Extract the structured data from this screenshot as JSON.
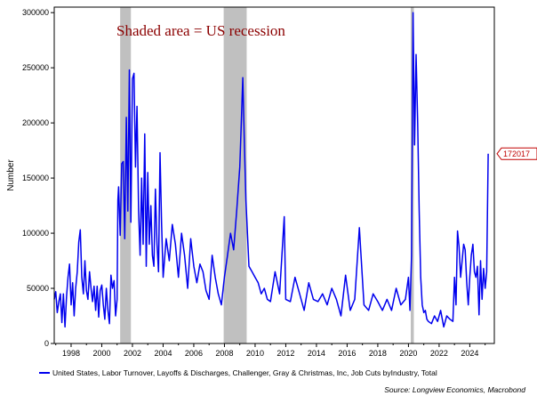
{
  "chart_data": {
    "type": "line",
    "title": "",
    "xlabel": "",
    "ylabel": "Number",
    "annotation": "Shaded area = US recession",
    "last_value_label": "172017",
    "last_value": 172017,
    "xlim": [
      1996.9,
      2025.6
    ],
    "ylim": [
      0,
      305000
    ],
    "x_ticks": [
      1998,
      2000,
      2002,
      2004,
      2006,
      2008,
      2010,
      2012,
      2014,
      2016,
      2018,
      2020,
      2022,
      2024
    ],
    "x_tick_labels": [
      "1998",
      "2000",
      "2002",
      "2004",
      "2006",
      "2008",
      "2010",
      "2012",
      "2014",
      "2016",
      "2018",
      "2020",
      "2022",
      "2024"
    ],
    "y_ticks": [
      0,
      50000,
      100000,
      150000,
      200000,
      250000,
      300000
    ],
    "y_tick_labels": [
      "0",
      "50000",
      "100000",
      "150000",
      "200000",
      "250000",
      "300000"
    ],
    "recessions": [
      {
        "start": 2001.2,
        "end": 2001.9
      },
      {
        "start": 2007.95,
        "end": 2009.45
      },
      {
        "start": 2020.15,
        "end": 2020.35
      }
    ],
    "series": [
      {
        "name": "United States, Labor Turnover, Layoffs & Discharges, Challenger, Gray & Christmas, Inc, Job Cuts byIndustry, Total",
        "color": "#0000ee",
        "x": [
          1996.9,
          1997.0,
          1997.1,
          1997.2,
          1997.3,
          1997.4,
          1997.5,
          1997.6,
          1997.7,
          1997.8,
          1997.9,
          1998.0,
          1998.1,
          1998.2,
          1998.3,
          1998.4,
          1998.5,
          1998.6,
          1998.7,
          1998.8,
          1998.9,
          1999.0,
          1999.1,
          1999.2,
          1999.3,
          1999.4,
          1999.5,
          1999.6,
          1999.7,
          1999.8,
          1999.9,
          2000.0,
          2000.1,
          2000.2,
          2000.3,
          2000.4,
          2000.5,
          2000.6,
          2000.7,
          2000.8,
          2000.9,
          2001.0,
          2001.05,
          2001.1,
          2001.2,
          2001.3,
          2001.4,
          2001.5,
          2001.6,
          2001.7,
          2001.8,
          2001.9,
          2002.0,
          2002.1,
          2002.2,
          2002.3,
          2002.4,
          2002.5,
          2002.6,
          2002.7,
          2002.8,
          2002.9,
          2003.0,
          2003.1,
          2003.2,
          2003.3,
          2003.4,
          2003.5,
          2003.6,
          2003.7,
          2003.8,
          2003.9,
          2004.0,
          2004.2,
          2004.4,
          2004.6,
          2004.8,
          2005.0,
          2005.2,
          2005.4,
          2005.6,
          2005.8,
          2006.0,
          2006.2,
          2006.4,
          2006.6,
          2006.8,
          2007.0,
          2007.2,
          2007.4,
          2007.6,
          2007.8,
          2008.0,
          2008.2,
          2008.4,
          2008.6,
          2008.8,
          2009.0,
          2009.1,
          2009.2,
          2009.3,
          2009.4,
          2009.6,
          2009.8,
          2010.0,
          2010.2,
          2010.4,
          2010.6,
          2010.8,
          2011.0,
          2011.3,
          2011.6,
          2011.9,
          2012.0,
          2012.3,
          2012.6,
          2012.9,
          2013.2,
          2013.5,
          2013.8,
          2014.1,
          2014.4,
          2014.7,
          2015.0,
          2015.3,
          2015.6,
          2015.9,
          2016.2,
          2016.5,
          2016.8,
          2017.1,
          2017.4,
          2017.7,
          2018.0,
          2018.3,
          2018.6,
          2018.9,
          2019.2,
          2019.5,
          2019.8,
          2020.0,
          2020.1,
          2020.2,
          2020.3,
          2020.4,
          2020.5,
          2020.6,
          2020.7,
          2020.8,
          2020.9,
          2021.0,
          2021.1,
          2021.2,
          2021.3,
          2021.5,
          2021.7,
          2021.9,
          2022.1,
          2022.3,
          2022.5,
          2022.7,
          2022.9,
          2023.0,
          2023.1,
          2023.2,
          2023.3,
          2023.4,
          2023.5,
          2023.6,
          2023.7,
          2023.8,
          2023.9,
          2024.0,
          2024.1,
          2024.2,
          2024.3,
          2024.4,
          2024.5,
          2024.6,
          2024.7,
          2024.8,
          2024.9,
          2025.0,
          2025.1,
          2025.2
        ],
        "values": [
          40000,
          47000,
          28000,
          38000,
          45000,
          19000,
          45000,
          15000,
          42000,
          60000,
          72000,
          35000,
          55000,
          25000,
          50000,
          65000,
          92000,
          103000,
          60000,
          45000,
          75000,
          48000,
          40000,
          65000,
          50000,
          38000,
          52000,
          30000,
          52000,
          24000,
          48000,
          53000,
          35000,
          22000,
          50000,
          30000,
          18000,
          62000,
          50000,
          57000,
          25000,
          40000,
          130000,
          142000,
          98000,
          163000,
          165000,
          95000,
          205000,
          120000,
          248000,
          110000,
          240000,
          245000,
          160000,
          215000,
          120000,
          80000,
          150000,
          90000,
          190000,
          70000,
          155000,
          90000,
          125000,
          80000,
          70000,
          140000,
          90000,
          65000,
          173000,
          110000,
          60000,
          95000,
          75000,
          108000,
          90000,
          60000,
          100000,
          80000,
          50000,
          95000,
          70000,
          55000,
          72000,
          65000,
          48000,
          40000,
          80000,
          60000,
          45000,
          35000,
          60000,
          80000,
          100000,
          85000,
          120000,
          160000,
          200000,
          241000,
          180000,
          130000,
          70000,
          65000,
          60000,
          55000,
          45000,
          50000,
          40000,
          38000,
          65000,
          45000,
          115000,
          40000,
          38000,
          60000,
          45000,
          30000,
          55000,
          40000,
          38000,
          45000,
          35000,
          50000,
          40000,
          25000,
          62000,
          30000,
          40000,
          105000,
          35000,
          30000,
          45000,
          38000,
          30000,
          40000,
          30000,
          50000,
          35000,
          40000,
          60000,
          30000,
          80000,
          300000,
          180000,
          262000,
          200000,
          120000,
          60000,
          35000,
          28000,
          30000,
          22000,
          20000,
          18000,
          25000,
          20000,
          30000,
          15000,
          25000,
          22000,
          20000,
          60000,
          35000,
          102000,
          88000,
          60000,
          75000,
          90000,
          85000,
          55000,
          35000,
          60000,
          80000,
          90000,
          65000,
          60000,
          70000,
          26000,
          75000,
          40000,
          68000,
          50000,
          65000,
          172017
        ]
      }
    ]
  },
  "legend": {
    "label": "United States, Labor Turnover, Layoffs & Discharges, Challenger, Gray & Christmas, Inc, Job Cuts byIndustry, Total"
  },
  "source": "Source: Longview Economics, Macrobond",
  "colors": {
    "line": "#0000ee",
    "recession": "#c0c0c0",
    "annotation": "#8b0000",
    "callout": "#c00000"
  }
}
